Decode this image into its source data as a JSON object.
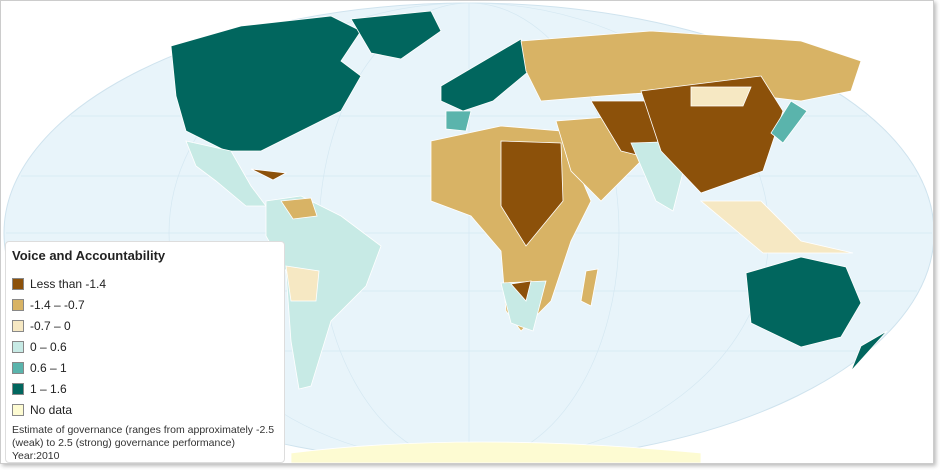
{
  "legend": {
    "title": "Voice and Accountability",
    "items": [
      {
        "label": "Less than -1.4",
        "color": "#8c510a"
      },
      {
        "label": "-1.4 – -0.7",
        "color": "#d8b365"
      },
      {
        "label": "-0.7 – 0",
        "color": "#f6e8c3"
      },
      {
        "label": "0 – 0.6",
        "color": "#c7eae5"
      },
      {
        "label": "0.6 – 1",
        "color": "#5ab4ac"
      },
      {
        "label": "1 – 1.6",
        "color": "#01665e"
      },
      {
        "label": "No data",
        "color": "#fdfbd2"
      }
    ],
    "note": "Estimate of governance (ranges from approximately -2.5 (weak) to 2.5 (strong) governance performance)",
    "year": "Year:2010"
  }
}
